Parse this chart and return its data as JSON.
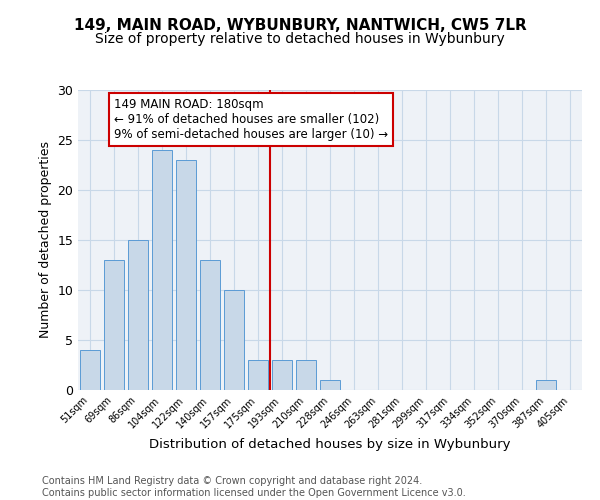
{
  "title": "149, MAIN ROAD, WYBUNBURY, NANTWICH, CW5 7LR",
  "subtitle": "Size of property relative to detached houses in Wybunbury",
  "xlabel": "Distribution of detached houses by size in Wybunbury",
  "ylabel": "Number of detached properties",
  "bar_labels": [
    "51sqm",
    "69sqm",
    "86sqm",
    "104sqm",
    "122sqm",
    "140sqm",
    "157sqm",
    "175sqm",
    "193sqm",
    "210sqm",
    "228sqm",
    "246sqm",
    "263sqm",
    "281sqm",
    "299sqm",
    "317sqm",
    "334sqm",
    "352sqm",
    "370sqm",
    "387sqm",
    "405sqm"
  ],
  "bar_values": [
    4,
    13,
    15,
    24,
    23,
    13,
    10,
    3,
    3,
    3,
    1,
    0,
    0,
    0,
    0,
    0,
    0,
    0,
    0,
    1,
    0
  ],
  "bar_color": "#c8d8e8",
  "bar_edge_color": "#5b9bd5",
  "vline_x": 7.5,
  "vline_color": "#cc0000",
  "annotation_text": "149 MAIN ROAD: 180sqm\n← 91% of detached houses are smaller (102)\n9% of semi-detached houses are larger (10) →",
  "annotation_box_color": "#ffffff",
  "annotation_box_edge_color": "#cc0000",
  "ylim": [
    0,
    30
  ],
  "yticks": [
    0,
    5,
    10,
    15,
    20,
    25,
    30
  ],
  "grid_color": "#c8d8e8",
  "background_color": "#eef2f7",
  "footer_text": "Contains HM Land Registry data © Crown copyright and database right 2024.\nContains public sector information licensed under the Open Government Licence v3.0.",
  "title_fontsize": 11,
  "subtitle_fontsize": 10,
  "xlabel_fontsize": 9.5,
  "ylabel_fontsize": 9,
  "annotation_fontsize": 8.5,
  "footer_fontsize": 7
}
